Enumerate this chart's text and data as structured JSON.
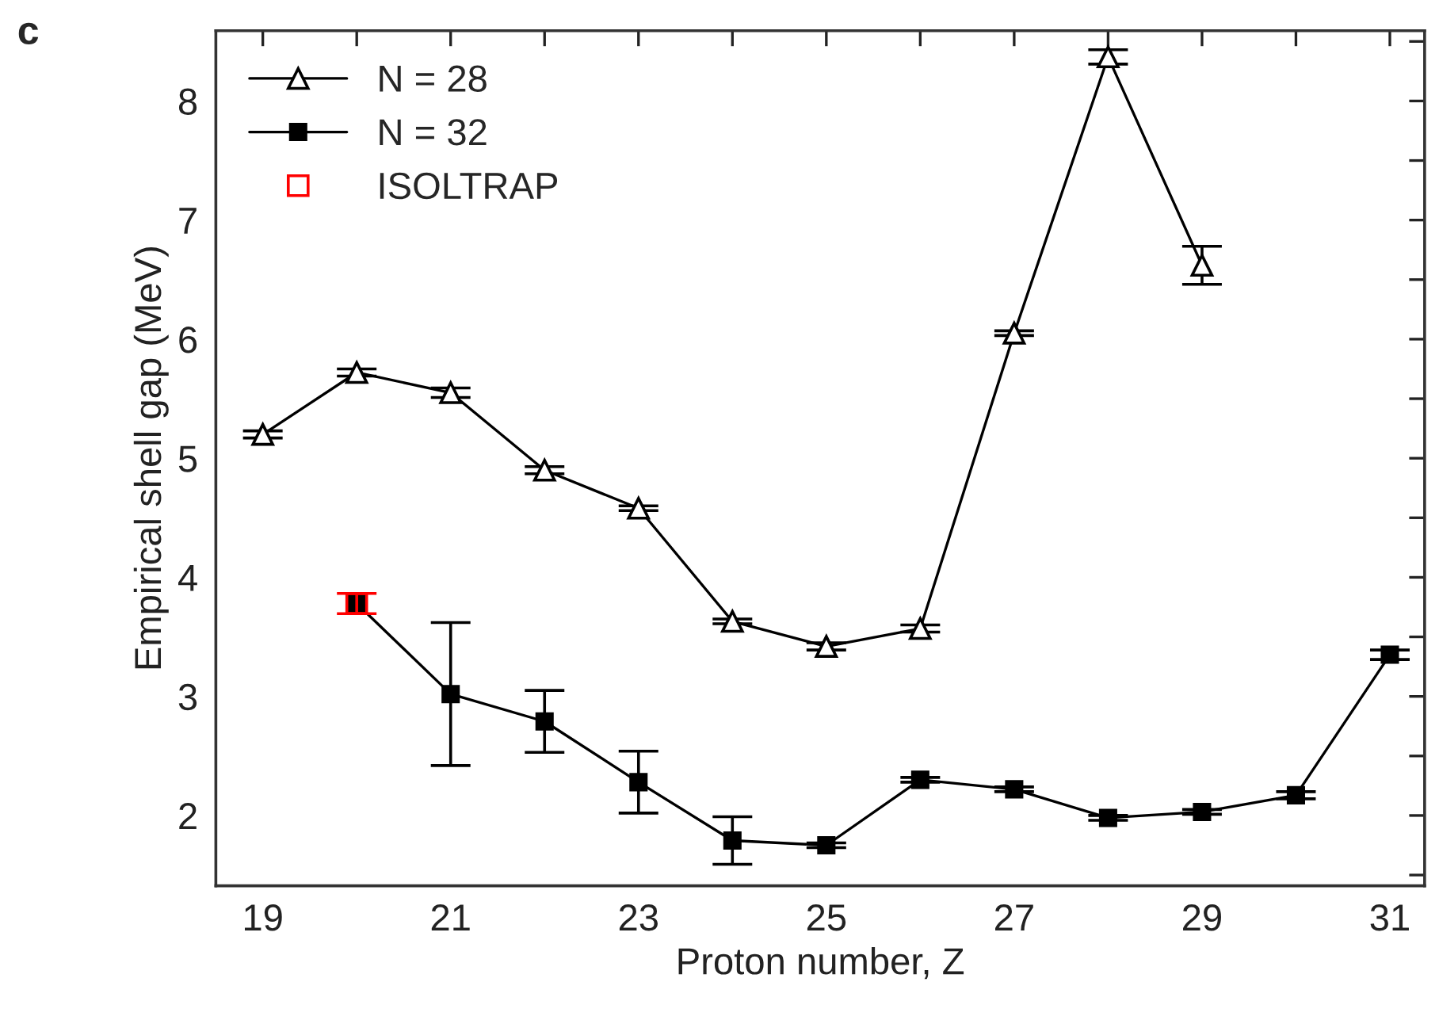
{
  "chart_data": {
    "type": "line",
    "xlabel": "Proton number, Z",
    "ylabel": "Empirical shell gap (MeV)",
    "annotations": [
      "c"
    ],
    "xlim": [
      18.5,
      31.37
    ],
    "ylim": [
      1.41,
      8.59
    ],
    "xticks": [
      19,
      {
        "value": 20,
        "label": null
      },
      21,
      {
        "value": 22,
        "label": null
      },
      23,
      {
        "value": 24,
        "label": null
      },
      25,
      {
        "value": 26,
        "label": null
      },
      27,
      {
        "value": 28,
        "label": null
      },
      29,
      {
        "value": 30,
        "label": null
      },
      31
    ],
    "yticks": [
      {
        "value": 1.5,
        "label": null
      },
      2,
      {
        "value": 2.5,
        "label": null
      },
      3,
      {
        "value": 3.5,
        "label": null
      },
      4,
      {
        "value": 4.5,
        "label": null
      },
      5,
      {
        "value": 5.5,
        "label": null
      },
      6,
      {
        "value": 6.5,
        "label": null
      },
      7,
      {
        "value": 7.5,
        "label": null
      },
      8,
      {
        "value": 8.5,
        "label": null
      }
    ],
    "legend": "top left",
    "grid": false,
    "series": [
      {
        "name": "N = 28",
        "marker": "triangle",
        "color": "#000000",
        "x": [
          19,
          20,
          21,
          22,
          23,
          24,
          25,
          26,
          27,
          28,
          29
        ],
        "values": [
          5.2,
          5.72,
          5.55,
          4.9,
          4.58,
          3.63,
          3.42,
          3.57,
          6.05,
          8.37,
          6.62
        ],
        "errors": [
          0.03,
          0.03,
          0.04,
          0.03,
          0.02,
          0.02,
          0.03,
          0.03,
          0.02,
          0.06,
          0.16
        ]
      },
      {
        "name": "N = 32",
        "marker": "square",
        "color": "#000000",
        "x": [
          20,
          21,
          22,
          23,
          24,
          25,
          26,
          27,
          28,
          29,
          30,
          31
        ],
        "values": [
          3.78,
          3.02,
          2.79,
          2.28,
          1.79,
          1.75,
          2.3,
          2.22,
          1.98,
          2.03,
          2.17,
          3.35
        ],
        "errors": [
          null,
          0.6,
          0.26,
          0.26,
          0.2,
          0.02,
          0.02,
          0.02,
          0.02,
          0.02,
          0.03,
          0.04
        ]
      },
      {
        "name": "ISOLTRAP",
        "type": "scatter",
        "marker": "square",
        "color": "#ff0000",
        "x": [
          20
        ],
        "values": [
          3.78
        ],
        "errors": [
          0.085
        ]
      }
    ]
  }
}
